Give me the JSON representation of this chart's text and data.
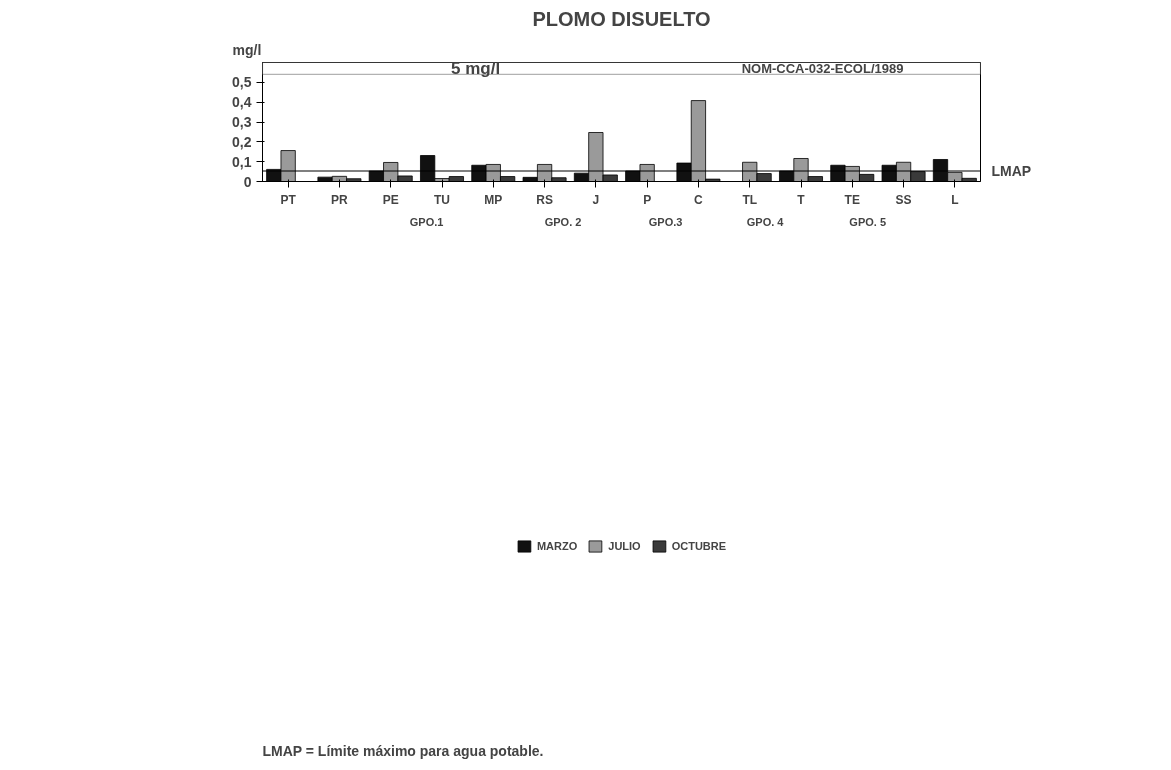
{
  "chart_data": {
    "type": "bar",
    "title": "PLOMO DISUELTO",
    "ylabel": "mg/l",
    "categories": [
      "PT",
      "PR",
      "PE",
      "TU",
      "MP",
      "RS",
      "J",
      "P",
      "C",
      "TL",
      "T",
      "TE",
      "SS",
      "L"
    ],
    "series": [
      {
        "name": "MARZO",
        "color": "#111111",
        "values": [
          0.061,
          0.022,
          0.053,
          0.131,
          0.082,
          0.021,
          0.042,
          0.053,
          0.093,
          null,
          0.053,
          0.082,
          0.082,
          0.111
        ]
      },
      {
        "name": "JULIO",
        "color": "#9a9a9a",
        "values": [
          0.156,
          0.026,
          0.096,
          0.015,
          0.086,
          0.086,
          0.247,
          0.086,
          0.408,
          0.097,
          0.116,
          0.076,
          0.097,
          0.046
        ]
      },
      {
        "name": "OCTUBRE",
        "color": "#3a3a3a",
        "values": [
          null,
          0.014,
          0.028,
          0.025,
          0.025,
          0.019,
          0.033,
          null,
          0.012,
          0.04,
          0.025,
          0.036,
          0.05,
          0.016
        ]
      }
    ],
    "ylim": [
      0,
      0.6
    ],
    "yticks": [
      0,
      {
        "value": 0.1,
        "label": "0,1"
      },
      {
        "value": 0.2,
        "label": "0,2"
      },
      {
        "value": 0.3,
        "label": "0,3"
      },
      {
        "value": 0.4,
        "label": "0,4"
      },
      {
        "value": 0.5,
        "label": "0,5"
      }
    ],
    "ref_lines": [
      {
        "axis": "y",
        "value": 0.053,
        "label": "LMAP"
      }
    ],
    "bands": [
      {
        "axis": "y",
        "from": 0.54,
        "to": 0.6,
        "label": "5  mg/l",
        "color": "#ffffff"
      }
    ],
    "annotations": [
      "NOM-CCA-032-ECOL/1989",
      "LMAP = Límite máximo para agua potable.",
      "GPO.1",
      "GPO. 2",
      "GPO.3",
      "GPO. 4",
      "GPO. 5"
    ],
    "legend": "bottom",
    "grid": false
  }
}
